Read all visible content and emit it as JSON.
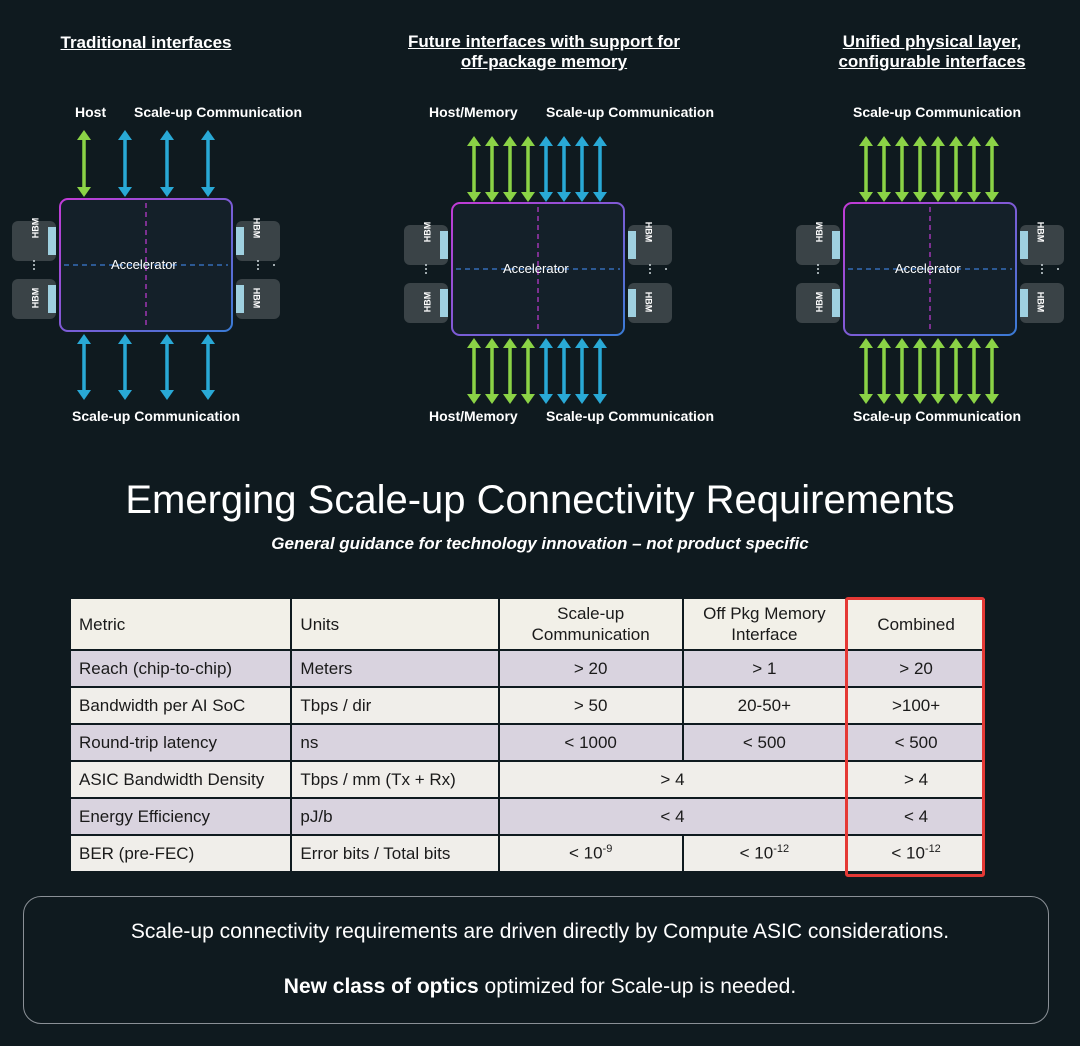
{
  "diagrams": [
    {
      "title_line1": "Traditional interfaces",
      "title_line2": "",
      "top_left_label": "Host",
      "top_right_label": "Scale-up Communication",
      "bottom_left_label": "Scale-up Communication",
      "bottom_right_label": "",
      "chip_label": "Accelerator",
      "hbm_label": "HBM"
    },
    {
      "title_line1": "Future interfaces with support for",
      "title_line2": "off-package memory",
      "top_left_label": "Host/Memory",
      "top_right_label": "Scale-up Communication",
      "bottom_left_label": "Host/Memory",
      "bottom_right_label": "Scale-up Communication",
      "chip_label": "Accelerator",
      "hbm_label": "HBM"
    },
    {
      "title_line1": "Unified physical layer,",
      "title_line2": "configurable interfaces",
      "top_left_label": "Scale-up Communication",
      "top_right_label": "",
      "bottom_left_label": "Scale-up Communication",
      "bottom_right_label": "",
      "chip_label": "Accelerator",
      "hbm_label": "HBM"
    }
  ],
  "colors": {
    "background": "#0f1a1f",
    "green_arrow": "#8bd346",
    "blue_arrow": "#29a9d6",
    "highlight": "#e53935"
  },
  "heading": {
    "title": "Emerging Scale-up Connectivity Requirements",
    "subtitle": "General guidance for technology innovation – not product specific"
  },
  "table": {
    "headers": {
      "metric": "Metric",
      "units": "Units",
      "scaleup": "Scale-up Communication",
      "offpkg": "Off Pkg Memory Interface",
      "combined": "Combined"
    },
    "rows": [
      {
        "metric": "Reach (chip-to-chip)",
        "units": "Meters",
        "scaleup": "> 20",
        "offpkg": "> 1",
        "combined": "> 20"
      },
      {
        "metric": "Bandwidth per AI SoC",
        "units": "Tbps / dir",
        "scaleup": "> 50",
        "offpkg": "20-50+",
        "combined": ">100+"
      },
      {
        "metric": "Round-trip latency",
        "units": "ns",
        "scaleup": "< 1000",
        "offpkg": "< 500",
        "combined": "< 500"
      },
      {
        "metric": "ASIC Bandwidth Density",
        "units": "Tbps / mm (Tx + Rx)",
        "shared": "> 4",
        "combined": "> 4"
      },
      {
        "metric": "Energy Efficiency",
        "units": "pJ/b",
        "shared": "< 4",
        "combined": "< 4"
      },
      {
        "metric": "BER (pre-FEC)",
        "units": "Error bits / Total bits",
        "scaleup_base": "< 10",
        "scaleup_exp": "-9",
        "offpkg_base": "< 10",
        "offpkg_exp": "-12",
        "combined_base": "< 10",
        "combined_exp": "-12"
      }
    ]
  },
  "footer": {
    "line1": "Scale-up connectivity requirements are driven directly by Compute ASIC considerations.",
    "line2_bold": "New class of  optics",
    "line2_rest": " optimized for Scale-up is needed."
  }
}
